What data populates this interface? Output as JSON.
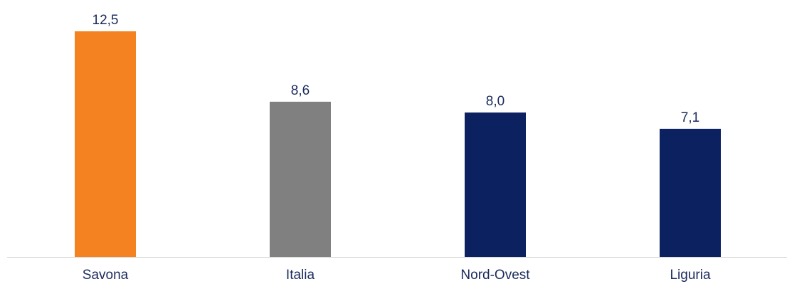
{
  "chart_data": {
    "type": "bar",
    "categories": [
      "Savona",
      "Italia",
      "Nord-Ovest",
      "Liguria"
    ],
    "values": [
      12.5,
      8.6,
      8.0,
      7.1
    ],
    "value_labels": [
      "12,5",
      "8,6",
      "8,0",
      "7,1"
    ],
    "bar_colors": [
      "#f58220",
      "#808080",
      "#0b2160",
      "#0b2160"
    ],
    "axis_color": "#d9d9d9",
    "label_color": "#1b2a5c",
    "ylim": [
      0,
      12.5
    ],
    "grid": false,
    "legend": "none"
  }
}
